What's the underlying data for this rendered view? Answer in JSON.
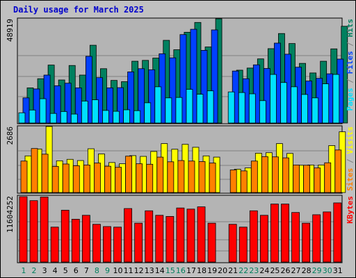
{
  "title": "Daily usage for March 2025",
  "colors": {
    "background": "#c0c0c0",
    "panel": "#b4b4b4",
    "title": "#0000cc",
    "pages": "#00e0ff",
    "files": "#0040ff",
    "hits": "#00805f",
    "visits": "#ffff00",
    "sites": "#ff8000",
    "kbytes": "#ff0000",
    "weekday_label": "#000000",
    "weekend_label": "#00805f",
    "separator": "#7f7f7f"
  },
  "chart_data": [
    {
      "type": "bar",
      "name": "hits-files-pages",
      "title": "Daily usage for March 2025",
      "categories": [
        "1",
        "2",
        "3",
        "4",
        "5",
        "6",
        "7",
        "8",
        "9",
        "10",
        "11",
        "12",
        "13",
        "14",
        "15",
        "16",
        "17",
        "18",
        "19",
        "20",
        "21",
        "22",
        "23",
        "24",
        "25",
        "26",
        "27",
        "28",
        "29",
        "30",
        "31"
      ],
      "ylim": [
        0,
        48919
      ],
      "ylabel": "48919",
      "series": [
        {
          "name": "Hits",
          "color": "#00805f",
          "values": [
            16500,
            20800,
            27200,
            20200,
            27000,
            22500,
            36500,
            25500,
            20000,
            19400,
            29000,
            29400,
            30500,
            38800,
            34400,
            42600,
            47200,
            35700,
            48919,
            null,
            24800,
            25800,
            30100,
            34900,
            42000,
            37300,
            28000,
            23500,
            29000,
            34800,
            45400
          ]
        },
        {
          "name": "Files",
          "color": "#0040ff",
          "values": [
            11800,
            16000,
            22500,
            17500,
            18700,
            16500,
            31300,
            21300,
            16500,
            16600,
            24000,
            25500,
            25000,
            32500,
            30600,
            41500,
            44000,
            34100,
            43700,
            null,
            24400,
            20800,
            27300,
            25600,
            37500,
            32300,
            26200,
            19700,
            21000,
            23100,
            30000
          ]
        },
        {
          "name": "Pages",
          "color": "#00e0ff",
          "values": [
            4800,
            6100,
            11400,
            4500,
            5400,
            4200,
            10300,
            10900,
            5900,
            5500,
            6200,
            5800,
            9500,
            17000,
            11800,
            12000,
            15800,
            13500,
            15100,
            null,
            14600,
            14300,
            13700,
            10500,
            22800,
            19000,
            17000,
            13400,
            11800,
            18400,
            22800
          ]
        }
      ]
    },
    {
      "type": "bar",
      "name": "visits-sites",
      "categories": [
        "1",
        "2",
        "3",
        "4",
        "5",
        "6",
        "7",
        "8",
        "9",
        "10",
        "11",
        "12",
        "13",
        "14",
        "15",
        "16",
        "17",
        "18",
        "19",
        "20",
        "21",
        "22",
        "23",
        "24",
        "25",
        "26",
        "27",
        "28",
        "29",
        "30",
        "31"
      ],
      "ylim": [
        0,
        2686
      ],
      "ylabel": "2686",
      "series": [
        {
          "name": "Visits",
          "color": "#ffff00",
          "values": [
            1490,
            1770,
            2686,
            1290,
            1350,
            1300,
            1780,
            1570,
            1220,
            1170,
            1500,
            1470,
            1670,
            1990,
            1760,
            1960,
            1840,
            1490,
            1440,
            null,
            950,
            1000,
            1600,
            1620,
            1990,
            1590,
            1110,
            1120,
            1120,
            1910,
            2470
          ]
        },
        {
          "name": "Sites",
          "color": "#ff8000",
          "values": [
            1280,
            1790,
            1560,
            1060,
            1160,
            1090,
            1120,
            1200,
            1070,
            1030,
            1480,
            1170,
            1150,
            1440,
            1250,
            1300,
            1280,
            1260,
            1200,
            null,
            920,
            880,
            1280,
            1460,
            1450,
            1410,
            1120,
            1110,
            1000,
            1210,
            1730
          ]
        }
      ]
    },
    {
      "type": "bar",
      "name": "kbytes",
      "categories": [
        "1",
        "2",
        "3",
        "4",
        "5",
        "6",
        "7",
        "8",
        "9",
        "10",
        "11",
        "12",
        "13",
        "14",
        "15",
        "16",
        "17",
        "18",
        "19",
        "20",
        "21",
        "22",
        "23",
        "24",
        "25",
        "26",
        "27",
        "28",
        "29",
        "30",
        "31"
      ],
      "ylim": [
        0,
        11604252
      ],
      "ylabel": "11604252",
      "series": [
        {
          "name": "KBytes",
          "color": "#ff0000",
          "values": [
            11604252,
            10900000,
            11550000,
            6200000,
            9200000,
            7600000,
            8300000,
            6700000,
            6300000,
            6200000,
            9500000,
            6900000,
            9100000,
            8300000,
            8100000,
            9600000,
            9400000,
            9800000,
            6900000,
            null,
            6700000,
            6200000,
            9100000,
            8300000,
            10300000,
            10300000,
            8800000,
            6900000,
            8400000,
            8900000,
            10500000
          ]
        }
      ]
    }
  ],
  "right_labels": {
    "top": [
      {
        "text": "Pages",
        "color": "#00e0ff"
      },
      {
        "text": " / ",
        "color": "#808080"
      },
      {
        "text": "Files",
        "color": "#0040ff"
      },
      {
        "text": " / ",
        "color": "#808080"
      },
      {
        "text": "Hits",
        "color": "#00805f"
      }
    ],
    "middle": [
      {
        "text": "Sites",
        "color": "#ff8000"
      },
      {
        "text": " / ",
        "color": "#808080"
      },
      {
        "text": "Visits",
        "color": "#ffff00"
      }
    ],
    "bottom": [
      {
        "text": "KBytes",
        "color": "#ff0000"
      }
    ]
  },
  "x_labels": [
    {
      "day": "1",
      "weekend": true
    },
    {
      "day": "2",
      "weekend": true
    },
    {
      "day": "3",
      "weekend": false
    },
    {
      "day": "4",
      "weekend": false
    },
    {
      "day": "5",
      "weekend": false
    },
    {
      "day": "6",
      "weekend": false
    },
    {
      "day": "7",
      "weekend": false
    },
    {
      "day": "8",
      "weekend": true
    },
    {
      "day": "9",
      "weekend": true
    },
    {
      "day": "10",
      "weekend": false
    },
    {
      "day": "11",
      "weekend": false
    },
    {
      "day": "12",
      "weekend": false
    },
    {
      "day": "13",
      "weekend": false
    },
    {
      "day": "14",
      "weekend": false
    },
    {
      "day": "15",
      "weekend": true
    },
    {
      "day": "16",
      "weekend": true
    },
    {
      "day": "17",
      "weekend": false
    },
    {
      "day": "18",
      "weekend": false
    },
    {
      "day": "19",
      "weekend": false
    },
    {
      "day": "20",
      "weekend": false
    },
    {
      "day": "21",
      "weekend": false
    },
    {
      "day": "22",
      "weekend": true
    },
    {
      "day": "23",
      "weekend": true
    },
    {
      "day": "24",
      "weekend": false
    },
    {
      "day": "25",
      "weekend": false
    },
    {
      "day": "26",
      "weekend": false
    },
    {
      "day": "27",
      "weekend": false
    },
    {
      "day": "28",
      "weekend": false
    },
    {
      "day": "29",
      "weekend": true
    },
    {
      "day": "30",
      "weekend": true
    },
    {
      "day": "31",
      "weekend": false
    }
  ]
}
